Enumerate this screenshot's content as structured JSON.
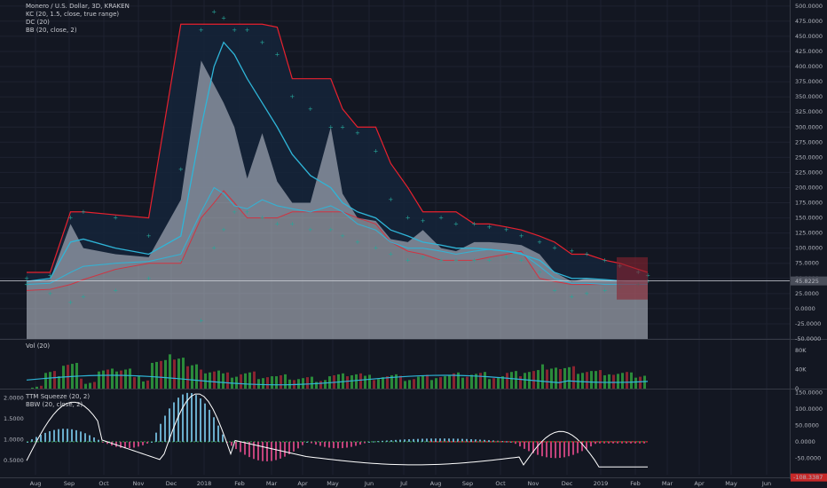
{
  "header": {
    "title": "Monero / U.S. Dollar, 3D, KRAKEN",
    "study_kc": "KC (20, 1.5, close, true range)",
    "study_dc": "DC (20)",
    "study_bb": "BB (20, close, 2)"
  },
  "volume_pane": {
    "label": "Vol (20)",
    "ticks": [
      "80K",
      "40K",
      "0"
    ]
  },
  "squeeze_pane": {
    "label": "TTM Squeeze (20, 2)",
    "label2": "BBW (20, close, 2)",
    "right_ticks": [
      "150.0000",
      "100.0000",
      "50.0000",
      "0.0000",
      "-50.0000"
    ],
    "left_ticks": [
      "2.0000",
      "1.5000",
      "1.0000",
      "0.5000"
    ],
    "last_value": "-108.3387"
  },
  "price_axis": {
    "ticks": [
      "500.0000",
      "475.0000",
      "450.0000",
      "425.0000",
      "400.0000",
      "375.0000",
      "350.0000",
      "325.0000",
      "300.0000",
      "275.0000",
      "250.0000",
      "225.0000",
      "200.0000",
      "175.0000",
      "150.0000",
      "125.0000",
      "100.0000",
      "75.0000",
      "50.0000",
      "25.0000",
      "0.0000",
      "-25.0000",
      "-50.0000"
    ],
    "last_price": "45.8225"
  },
  "time_axis": {
    "ticks": [
      "Aug",
      "Sep",
      "Oct",
      "Nov",
      "Dec",
      "2018",
      "Feb",
      "Mar",
      "Apr",
      "May",
      "Jun",
      "Jul",
      "Aug",
      "Sep",
      "Oct",
      "Nov",
      "Dec",
      "2019",
      "Feb",
      "Mar",
      "Apr",
      "May",
      "Jun"
    ]
  },
  "colors": {
    "background": "#131722",
    "grid": "#1e2230",
    "dc_band": "#e8212e",
    "kc_line": "#2fb5d8",
    "bb_dots": "#26a69a",
    "area": "#c9ced8",
    "vol_up": "#2a8a3a",
    "vol_down": "#8a2330",
    "squeeze_up": "#79c5e8",
    "squeeze_down": "#e04a8a"
  },
  "chart_data": {
    "type": "line",
    "title": "Monero / U.S. Dollar, 3D, KRAKEN",
    "x": [
      "2017-07-10",
      "2017-08-01",
      "2017-08-20",
      "2017-09-01",
      "2017-10-01",
      "2017-11-01",
      "2017-12-01",
      "2017-12-20",
      "2018-01-01",
      "2018-01-10",
      "2018-01-20",
      "2018-02-01",
      "2018-02-15",
      "2018-03-01",
      "2018-03-15",
      "2018-04-01",
      "2018-04-20",
      "2018-05-01",
      "2018-05-15",
      "2018-06-01",
      "2018-06-15",
      "2018-07-01",
      "2018-07-15",
      "2018-08-01",
      "2018-08-15",
      "2018-09-01",
      "2018-09-15",
      "2018-10-01",
      "2018-10-15",
      "2018-11-01",
      "2018-11-15",
      "2018-12-01",
      "2018-12-15",
      "2019-01-01",
      "2019-01-15",
      "2019-02-01",
      "2019-02-10"
    ],
    "series": [
      {
        "values": [
          45,
          48,
          140,
          100,
          90,
          85,
          180,
          410,
          370,
          340,
          300,
          215,
          290,
          210,
          175,
          175,
          300,
          190,
          150,
          145,
          115,
          110,
          130,
          100,
          95,
          110,
          110,
          108,
          105,
          90,
          60,
          45,
          50,
          48,
          45,
          46,
          45.8225
        ]
      }
    ],
    "ylim": [
      -50,
      510
    ],
    "volume_ticks": [
      0,
      40000,
      80000
    ]
  }
}
